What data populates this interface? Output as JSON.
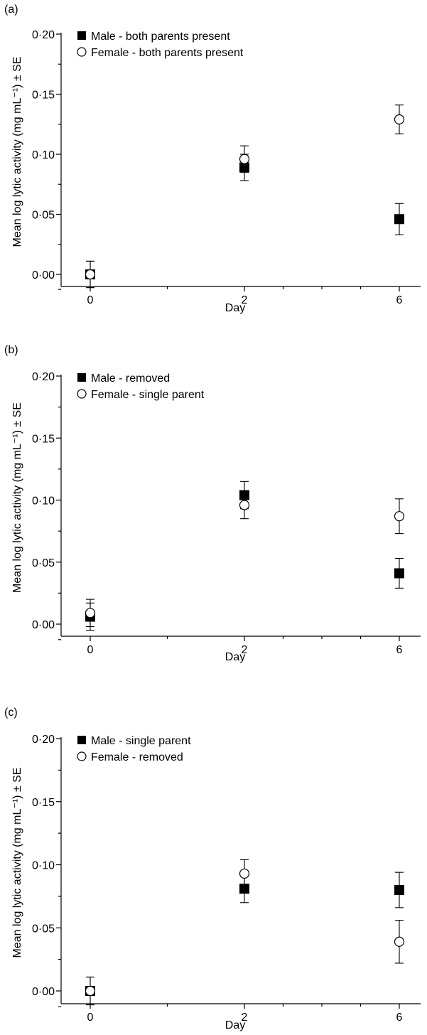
{
  "chart_data": [
    {
      "panel_label": "(a)",
      "type": "scatter",
      "xlabel": "Day",
      "ylabel": "Mean log lytic activity (mg mL⁻¹) ± SE",
      "x_ticks": [
        "0",
        "2",
        "6"
      ],
      "y_ticks": [
        "0·00",
        "0·05",
        "0·10",
        "0·15",
        "0·20"
      ],
      "ylim": [
        -0.02,
        0.2
      ],
      "grid": false,
      "legend_position": "top-left",
      "series": [
        {
          "name": "Male - both parents present",
          "marker": "filled-square",
          "x": [
            0,
            2,
            6
          ],
          "y": [
            0.0,
            0.089,
            0.046
          ],
          "se": [
            0.011,
            0.011,
            0.013
          ]
        },
        {
          "name": "Female - both parents present",
          "marker": "open-circle",
          "x": [
            0,
            2,
            6
          ],
          "y": [
            0.0,
            0.096,
            0.129
          ],
          "se": [
            0.011,
            0.011,
            0.012
          ]
        }
      ]
    },
    {
      "panel_label": "(b)",
      "type": "scatter",
      "xlabel": "Day",
      "ylabel": "Mean log lytic activity (mg mL⁻¹) ± SE",
      "x_ticks": [
        "0",
        "2",
        "6"
      ],
      "y_ticks": [
        "0·00",
        "0·05",
        "0·10",
        "0·15",
        "0·20"
      ],
      "ylim": [
        -0.02,
        0.2
      ],
      "grid": false,
      "legend_position": "top-left",
      "series": [
        {
          "name": "Male - removed",
          "marker": "filled-square",
          "x": [
            0,
            2,
            6
          ],
          "y": [
            0.006,
            0.104,
            0.041
          ],
          "se": [
            0.011,
            0.011,
            0.012
          ]
        },
        {
          "name": "Female - single parent",
          "marker": "open-circle",
          "x": [
            0,
            2,
            6
          ],
          "y": [
            0.009,
            0.096,
            0.087
          ],
          "se": [
            0.011,
            0.011,
            0.014
          ]
        }
      ]
    },
    {
      "panel_label": "(c)",
      "type": "scatter",
      "xlabel": "Day",
      "ylabel": "Mean log lytic activity (mg mL⁻¹) ± SE",
      "x_ticks": [
        "0",
        "2",
        "6"
      ],
      "y_ticks": [
        "0·00",
        "0·05",
        "0·10",
        "0·15",
        "0·20"
      ],
      "ylim": [
        -0.02,
        0.2
      ],
      "grid": false,
      "legend_position": "top-left",
      "series": [
        {
          "name": "Male - single parent",
          "marker": "filled-square",
          "x": [
            0,
            2,
            6
          ],
          "y": [
            0.0,
            0.081,
            0.08
          ],
          "se": [
            0.011,
            0.011,
            0.014
          ]
        },
        {
          "name": "Female - removed",
          "marker": "open-circle",
          "x": [
            0,
            2,
            6
          ],
          "y": [
            0.0,
            0.093,
            0.039
          ],
          "se": [
            0.011,
            0.011,
            0.017
          ]
        }
      ]
    }
  ]
}
